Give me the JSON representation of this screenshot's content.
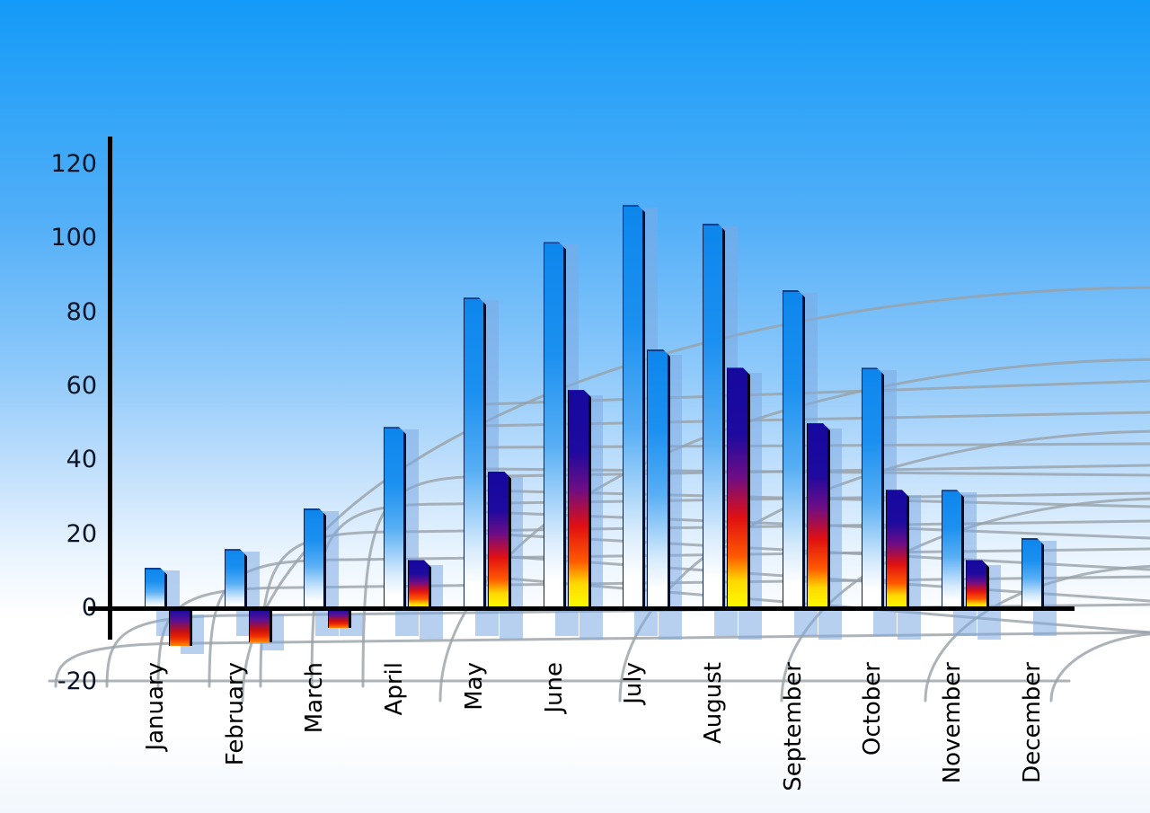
{
  "chart_data": {
    "type": "bar",
    "title": "",
    "categories": [
      "January",
      "February",
      "March",
      "April",
      "May",
      "June",
      "July",
      "August",
      "September",
      "October",
      "November",
      "December"
    ],
    "series": [
      {
        "name": "primary-blue-bars",
        "values": [
          11,
          16,
          27,
          49,
          84,
          99,
          109,
          104,
          86,
          65,
          32,
          19
        ]
      },
      {
        "name": "secondary-bars",
        "values": [
          -10,
          -9,
          -5,
          13,
          37,
          59,
          70,
          65,
          50,
          32,
          13,
          null
        ]
      }
    ],
    "secondary_bar_style": [
      "multicolor",
      "multicolor",
      "multicolor",
      "multicolor",
      "multicolor",
      "multicolor",
      "blue",
      "multicolor",
      "multicolor",
      "multicolor",
      "multicolor",
      "none"
    ],
    "y_ticks": [
      120,
      100,
      80,
      60,
      40,
      20,
      0,
      -20
    ],
    "ylim": [
      -20,
      120
    ],
    "xlabel": "",
    "ylabel": "",
    "legend_position": "none",
    "grid": "decorative perspective wireframe",
    "x_label_rotation_deg": -90
  },
  "colors": {
    "sky_top": "#149af8",
    "sky_bottom": "#ffffff",
    "bar_blue_top": "#0d86ec",
    "bar_blue_bottom": "#ffffff",
    "bar_multicolor_stops": [
      "#16089e",
      "#e01012",
      "#fbff00"
    ],
    "bar_shadow": "rgba(125,170,225,0.55)",
    "grid_line": "#98a1a8",
    "axis": "#000000",
    "tick_text": "#0a1426",
    "month_text": "#000000"
  }
}
